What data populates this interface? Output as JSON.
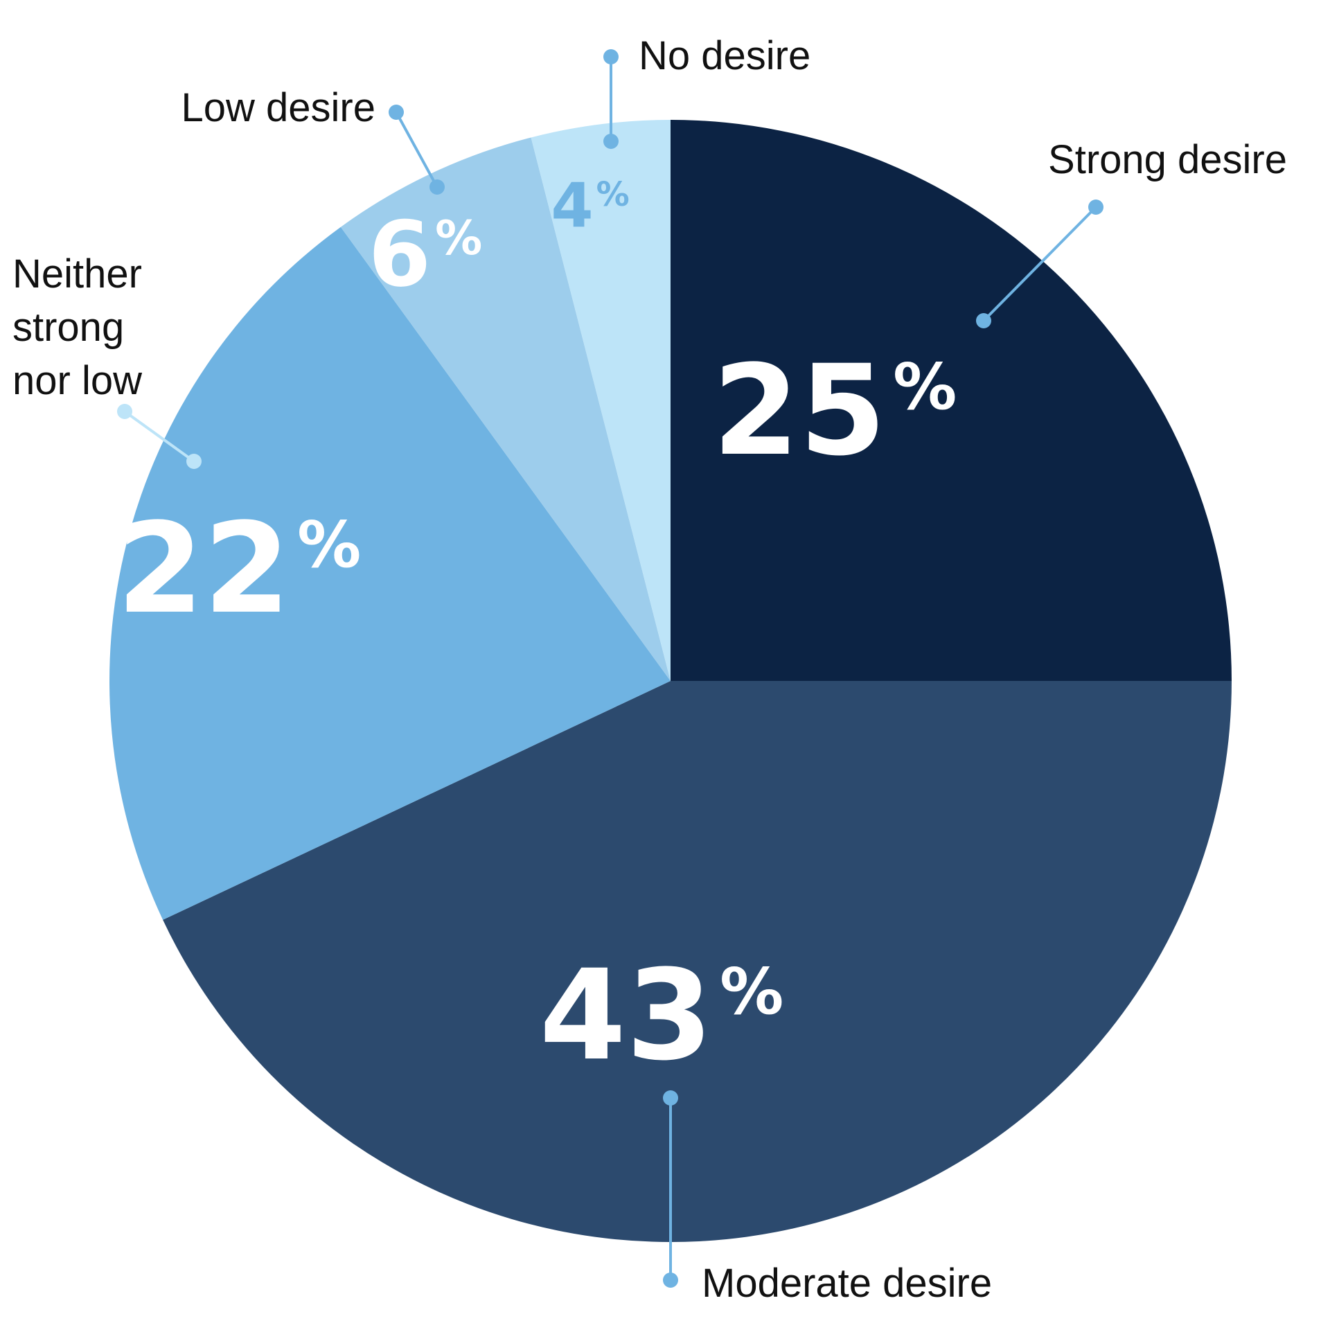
{
  "chart_data": {
    "type": "pie",
    "title": "",
    "start_angle_deg": 0,
    "direction": "clockwise",
    "percent_symbol": "%",
    "slices": [
      {
        "label": "Strong desire",
        "value": 25,
        "value_text": "25",
        "color": "#0c2344",
        "text_color": "#ffffff",
        "callout_color": "#6fb3e2"
      },
      {
        "label": "Moderate desire",
        "value": 43,
        "value_text": "43",
        "color": "#2c4a6e",
        "text_color": "#ffffff",
        "callout_color": "#6fb3e2"
      },
      {
        "label": "Neither strong nor low",
        "label_lines": [
          "Neither",
          "strong",
          "nor low"
        ],
        "value": 22,
        "value_text": "22",
        "color": "#6fb3e2",
        "text_color": "#ffffff",
        "callout_color": "#bde4f8"
      },
      {
        "label": "Low desire",
        "value": 6,
        "value_text": "6",
        "color": "#9dcdec",
        "text_color": "#ffffff",
        "callout_color": "#6fb3e2"
      },
      {
        "label": "No desire",
        "value": 4,
        "value_text": "4",
        "color": "#bde4f8",
        "text_color": "#6fb3e2",
        "callout_color": "#6fb3e2"
      }
    ]
  }
}
